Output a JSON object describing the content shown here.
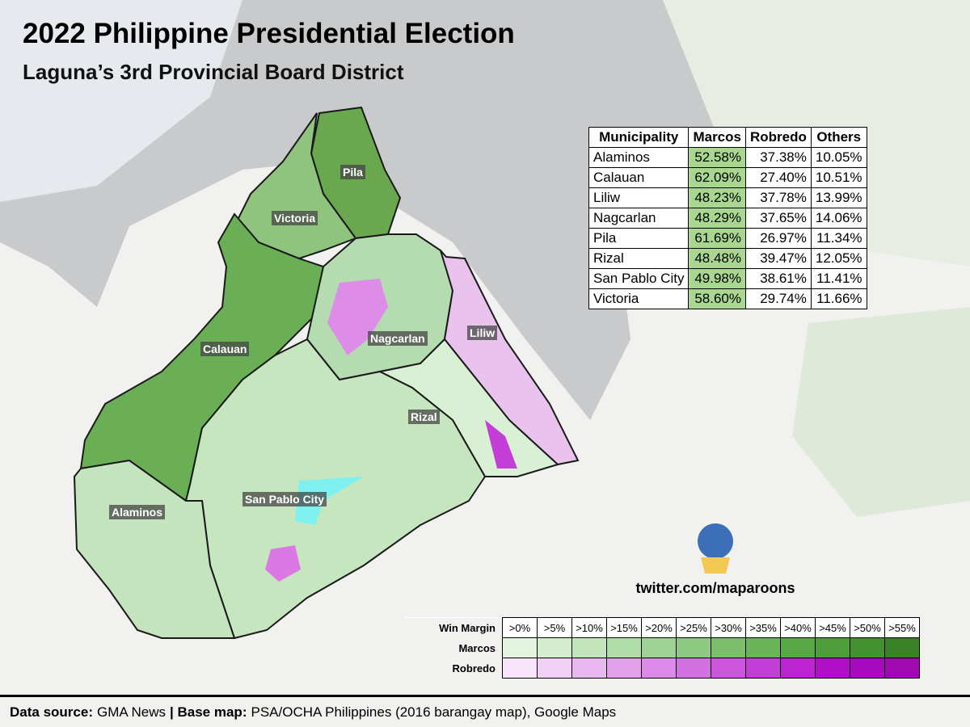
{
  "header": {
    "title": "2022 Philippine Presidential Election",
    "subtitle": "Laguna’s 3rd Provincial Board District"
  },
  "table": {
    "columns": [
      "Municipality",
      "Marcos",
      "Robredo",
      "Others"
    ],
    "rows": [
      [
        "Alaminos",
        "52.58%",
        "37.38%",
        "10.05%"
      ],
      [
        "Calauan",
        "62.09%",
        "27.40%",
        "10.51%"
      ],
      [
        "Liliw",
        "48.23%",
        "37.78%",
        "13.99%"
      ],
      [
        "Nagcarlan",
        "48.29%",
        "37.65%",
        "14.06%"
      ],
      [
        "Pila",
        "61.69%",
        "26.97%",
        "11.34%"
      ],
      [
        "Rizal",
        "48.48%",
        "39.47%",
        "12.05%"
      ],
      [
        "San Pablo City",
        "49.98%",
        "38.61%",
        "11.41%"
      ],
      [
        "Victoria",
        "58.60%",
        "29.74%",
        "11.66%"
      ]
    ],
    "highlight_color": "#a9d791"
  },
  "map_labels": [
    "Pila",
    "Victoria",
    "Calauan",
    "Nagcarlan",
    "Liliw",
    "Rizal",
    "San Pablo City",
    "Alaminos"
  ],
  "credit": "twitter.com/maparoons",
  "legend": {
    "title": "Win Margin",
    "bins": [
      ">0%",
      ">5%",
      ">10%",
      ">15%",
      ">20%",
      ">25%",
      ">30%",
      ">35%",
      ">40%",
      ">45%",
      ">50%",
      ">55%"
    ],
    "rows": [
      {
        "name": "Marcos",
        "colors": [
          "#e3f4df",
          "#d3edcd",
          "#c2e5bb",
          "#b0dca7",
          "#9fd395",
          "#8dca82",
          "#7bbf6d",
          "#6ab45a",
          "#5aa948",
          "#4d9e3a",
          "#42922f",
          "#3a8427"
        ]
      },
      {
        "name": "Robredo",
        "colors": [
          "#f8e4fb",
          "#f1cff6",
          "#eab8f1",
          "#e3a1ec",
          "#dc8ae7",
          "#d471e2",
          "#cc57dc",
          "#c33ed6",
          "#bb25d0",
          "#b00fc8",
          "#a80bbd",
          "#a008b2"
        ]
      }
    ]
  },
  "footer": [
    {
      "text": "Data source:",
      "bold": true
    },
    {
      "text": "GMA News",
      "bold": false
    },
    {
      "text": "| Base map:",
      "bold": true
    },
    {
      "text": "PSA/OCHA Philippines (2016 barangay map), Google Maps",
      "bold": false
    }
  ]
}
